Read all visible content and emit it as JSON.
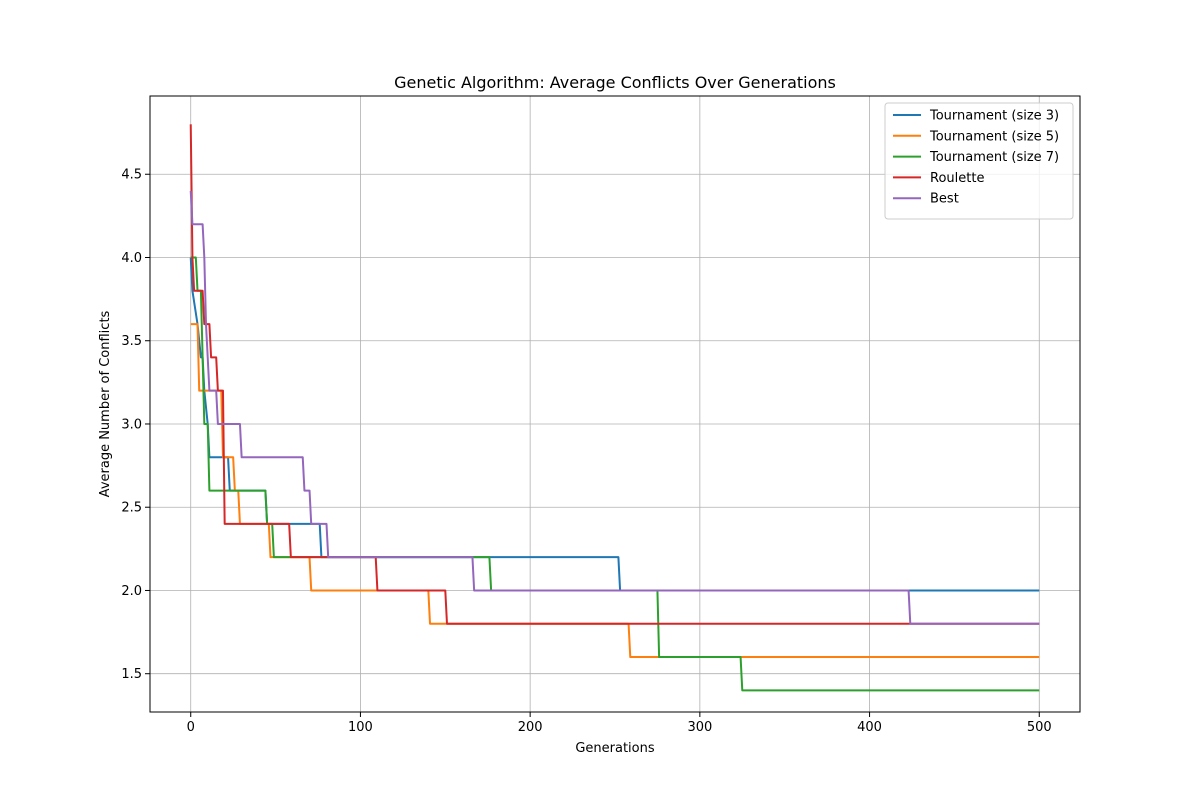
{
  "chart_data": {
    "type": "line",
    "title": "Genetic Algorithm: Average Conflicts Over Generations",
    "xlabel": "Generations",
    "ylabel": "Average Number of Conflicts",
    "xlim": [
      -24,
      524
    ],
    "ylim": [
      1.27,
      4.97
    ],
    "xticks": [
      0,
      100,
      200,
      300,
      400,
      500
    ],
    "yticks": [
      1.5,
      2.0,
      2.5,
      3.0,
      3.5,
      4.0,
      4.5
    ],
    "ytick_labels": [
      "1.5",
      "2.0",
      "2.5",
      "3.0",
      "3.5",
      "4.0",
      "4.5"
    ],
    "grid": true,
    "legend_position": "top-right",
    "series": [
      {
        "name": "Tournament (size 3)",
        "color": "#1f77b4",
        "points": [
          [
            0,
            4.0
          ],
          [
            1,
            3.8
          ],
          [
            4,
            3.6
          ],
          [
            6,
            3.4
          ],
          [
            7,
            3.4
          ],
          [
            8,
            3.2
          ],
          [
            10,
            3.0
          ],
          [
            11,
            2.8
          ],
          [
            12,
            2.8
          ],
          [
            22,
            2.8
          ],
          [
            23,
            2.6
          ],
          [
            44,
            2.6
          ],
          [
            45,
            2.4
          ],
          [
            76,
            2.4
          ],
          [
            77,
            2.2
          ],
          [
            252,
            2.2
          ],
          [
            253,
            2.0
          ],
          [
            500,
            2.0
          ]
        ]
      },
      {
        "name": "Tournament (size 5)",
        "color": "#ff7f0e",
        "points": [
          [
            0,
            3.6
          ],
          [
            4,
            3.6
          ],
          [
            5,
            3.2
          ],
          [
            16,
            3.2
          ],
          [
            18,
            3.2
          ],
          [
            19,
            2.8
          ],
          [
            25,
            2.8
          ],
          [
            26,
            2.6
          ],
          [
            28,
            2.6
          ],
          [
            29,
            2.4
          ],
          [
            46,
            2.4
          ],
          [
            47,
            2.2
          ],
          [
            70,
            2.2
          ],
          [
            71,
            2.0
          ],
          [
            140,
            2.0
          ],
          [
            141,
            1.8
          ],
          [
            258,
            1.8
          ],
          [
            259,
            1.6
          ],
          [
            500,
            1.6
          ]
        ]
      },
      {
        "name": "Tournament (size 7)",
        "color": "#2ca02c",
        "points": [
          [
            0,
            4.0
          ],
          [
            3,
            4.0
          ],
          [
            4,
            3.8
          ],
          [
            6,
            3.8
          ],
          [
            7,
            3.4
          ],
          [
            8,
            3.0
          ],
          [
            10,
            3.0
          ],
          [
            11,
            2.6
          ],
          [
            44,
            2.6
          ],
          [
            45,
            2.4
          ],
          [
            48,
            2.4
          ],
          [
            49,
            2.2
          ],
          [
            176,
            2.2
          ],
          [
            177,
            2.0
          ],
          [
            275,
            2.0
          ],
          [
            276,
            1.6
          ],
          [
            324,
            1.6
          ],
          [
            325,
            1.4
          ],
          [
            500,
            1.4
          ]
        ]
      },
      {
        "name": "Roulette",
        "color": "#d62728",
        "points": [
          [
            0,
            4.8
          ],
          [
            1,
            4.0
          ],
          [
            2,
            3.8
          ],
          [
            7,
            3.8
          ],
          [
            8,
            3.6
          ],
          [
            11,
            3.6
          ],
          [
            12,
            3.4
          ],
          [
            15,
            3.4
          ],
          [
            16,
            3.2
          ],
          [
            19,
            3.2
          ],
          [
            20,
            2.4
          ],
          [
            58,
            2.4
          ],
          [
            59,
            2.2
          ],
          [
            109,
            2.2
          ],
          [
            110,
            2.0
          ],
          [
            150,
            2.0
          ],
          [
            151,
            1.8
          ],
          [
            500,
            1.8
          ]
        ]
      },
      {
        "name": "Best",
        "color": "#9467bd",
        "points": [
          [
            0,
            4.4
          ],
          [
            1,
            4.2
          ],
          [
            7,
            4.2
          ],
          [
            8,
            4.0
          ],
          [
            9,
            3.6
          ],
          [
            10,
            3.4
          ],
          [
            11,
            3.2
          ],
          [
            15,
            3.2
          ],
          [
            16,
            3.0
          ],
          [
            29,
            3.0
          ],
          [
            30,
            2.8
          ],
          [
            66,
            2.8
          ],
          [
            67,
            2.6
          ],
          [
            70,
            2.6
          ],
          [
            71,
            2.4
          ],
          [
            80,
            2.4
          ],
          [
            81,
            2.2
          ],
          [
            166,
            2.2
          ],
          [
            167,
            2.0
          ],
          [
            423,
            2.0
          ],
          [
            424,
            1.8
          ],
          [
            500,
            1.8
          ]
        ]
      }
    ]
  }
}
